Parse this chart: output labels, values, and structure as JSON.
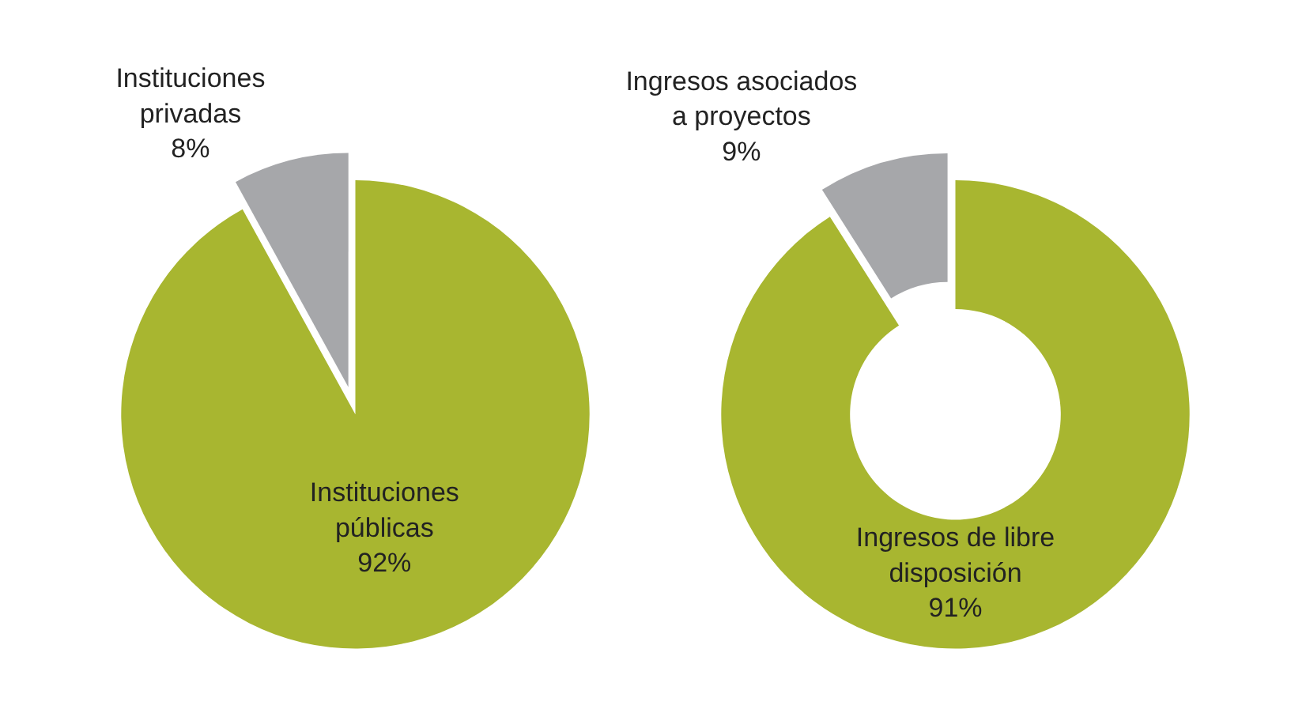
{
  "chart_data": [
    {
      "type": "pie",
      "categories": [
        "Instituciones públicas",
        "Instituciones privadas"
      ],
      "values": [
        92,
        8
      ],
      "value_labels": [
        "92%",
        "8%"
      ],
      "colors": [
        "#a8b630",
        "#a6a7aa"
      ]
    },
    {
      "type": "donut",
      "categories": [
        "Ingresos de libre disposición",
        "Ingresos asociados a proyectos"
      ],
      "values": [
        91,
        9
      ],
      "value_labels": [
        "91%",
        "9%"
      ],
      "colors": [
        "#a8b630",
        "#a6a7aa"
      ]
    }
  ]
}
